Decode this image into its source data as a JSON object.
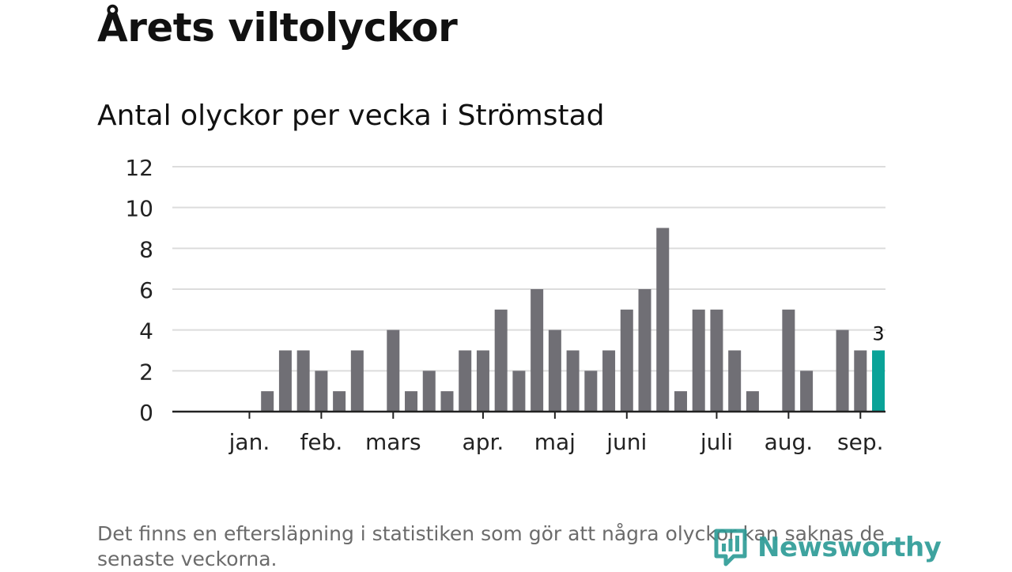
{
  "header": {
    "title": "Årets viltolyckor",
    "subtitle": "Antal olyckor per vecka i Strömstad"
  },
  "chart_data": {
    "type": "bar",
    "title": "Antal olyckor per vecka i Strömstad",
    "ylim": [
      0,
      12
    ],
    "yticks": [
      0,
      2,
      4,
      6,
      8,
      10,
      12
    ],
    "grid": true,
    "values": [
      0,
      0,
      0,
      1,
      3,
      3,
      2,
      1,
      3,
      0,
      4,
      1,
      2,
      1,
      3,
      3,
      5,
      2,
      6,
      4,
      3,
      2,
      3,
      5,
      6,
      9,
      1,
      5,
      5,
      3,
      1,
      0,
      5,
      2,
      0,
      4,
      3,
      3
    ],
    "month_labels": [
      {
        "label": "jan.",
        "week": 2
      },
      {
        "label": "feb.",
        "week": 6
      },
      {
        "label": "mars",
        "week": 10
      },
      {
        "label": "apr.",
        "week": 15
      },
      {
        "label": "maj",
        "week": 19
      },
      {
        "label": "juni",
        "week": 23
      },
      {
        "label": "juli",
        "week": 28
      },
      {
        "label": "aug.",
        "week": 32
      },
      {
        "label": "sep.",
        "week": 36
      }
    ],
    "highlight": {
      "index": 37,
      "label": "3",
      "color": "#0aa398"
    },
    "bar_color": "#706f75"
  },
  "footnote": "Det finns en eftersläpning i statistiken som gör att några olyckor kan saknas de senaste veckorna.",
  "brand": {
    "name": "Newsworthy",
    "icon": "newsworthy-logo-icon",
    "color": "#2a9a95"
  }
}
